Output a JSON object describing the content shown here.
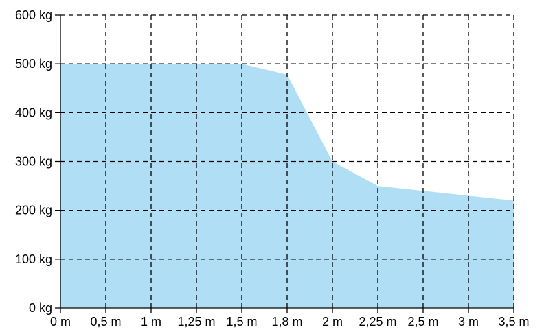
{
  "chart_data": {
    "type": "area",
    "title": "",
    "xlabel": "",
    "ylabel": "",
    "categories": [
      "0 m",
      "0,5 m",
      "1 m",
      "1,25 m",
      "1,5 m",
      "1,8 m",
      "2 m",
      "2,25 m",
      "2,5 m",
      "3 m",
      "3,5 m"
    ],
    "y_tick_labels": [
      "0 kg",
      "100 kg",
      "200 kg",
      "300 kg",
      "400 kg",
      "500 kg",
      "600 kg"
    ],
    "y_ticks": [
      0,
      100,
      200,
      300,
      400,
      500,
      600
    ],
    "ylim": [
      0,
      600
    ],
    "series": [
      {
        "values": [
          500,
          500,
          500,
          500,
          500,
          478,
          300,
          250,
          240,
          230,
          220
        ]
      }
    ],
    "grid": true,
    "legend": "none",
    "colors": {
      "fill": "#b0dff5",
      "grid": "#000000",
      "text": "#000000"
    }
  }
}
